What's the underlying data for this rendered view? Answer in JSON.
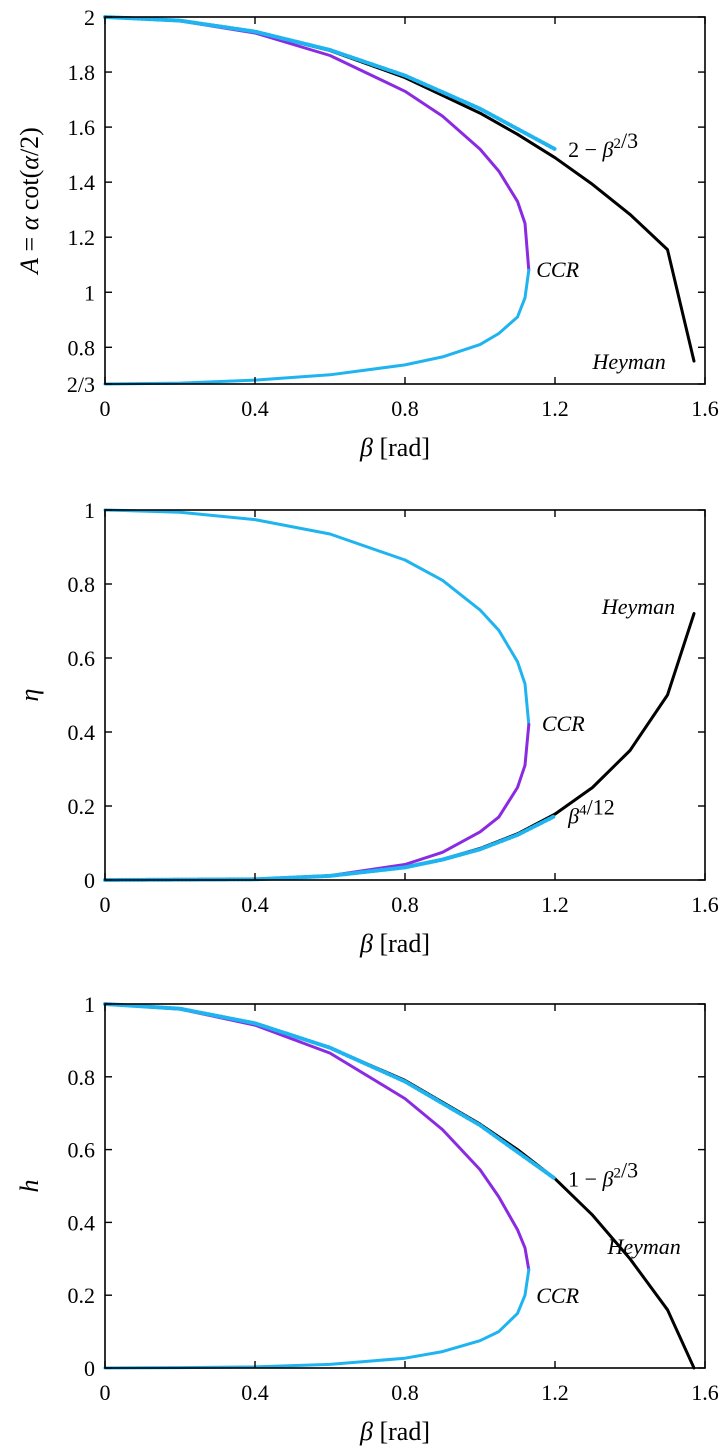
{
  "colors": {
    "heyman": "#000000",
    "ccr_upper": "#8a2be2",
    "ccr_lower": "#1fb4f0",
    "approx": "#1fb4f0"
  },
  "chart_data": [
    {
      "type": "line",
      "ylabel_parts": [
        "A",
        " = ",
        "α",
        " cot(",
        "α",
        "/2)"
      ],
      "xlabel_parts": [
        "β",
        " [rad]"
      ],
      "xlim": [
        0,
        1.6
      ],
      "ylim": [
        0.6667,
        2.0
      ],
      "xticks": [
        {
          "v": 0,
          "label": "0"
        },
        {
          "v": 0.4,
          "label": "0.4"
        },
        {
          "v": 0.8,
          "label": "0.8"
        },
        {
          "v": 1.2,
          "label": "1.2"
        },
        {
          "v": 1.6,
          "label": "1.6"
        }
      ],
      "yticks": [
        {
          "v": 0.6667,
          "label": "2/3"
        },
        {
          "v": 0.8,
          "label": "0.8"
        },
        {
          "v": 1.0,
          "label": "1"
        },
        {
          "v": 1.2,
          "label": "1.2"
        },
        {
          "v": 1.4,
          "label": "1.4"
        },
        {
          "v": 1.6,
          "label": "1.6"
        },
        {
          "v": 1.8,
          "label": "1.8"
        },
        {
          "v": 2.0,
          "label": "2"
        }
      ],
      "grid": false,
      "series": [
        {
          "name": "Heyman",
          "color_key": "heyman",
          "style": "solid",
          "x": [
            0,
            0.2,
            0.4,
            0.6,
            0.8,
            1.0,
            1.1,
            1.2,
            1.3,
            1.4,
            1.5,
            1.5708
          ],
          "y": [
            2.0,
            1.987,
            1.946,
            1.878,
            1.78,
            1.651,
            1.574,
            1.489,
            1.392,
            1.283,
            1.155,
            0.75
          ]
        },
        {
          "name": "",
          "color_key": "ccr_upper",
          "style": "solid",
          "x": [
            0,
            0.2,
            0.4,
            0.6,
            0.8,
            0.9,
            1.0,
            1.05,
            1.1,
            1.12,
            1.13
          ],
          "y": [
            2.0,
            1.986,
            1.942,
            1.86,
            1.73,
            1.64,
            1.52,
            1.44,
            1.33,
            1.25,
            1.08
          ]
        },
        {
          "name": "",
          "color_key": "ccr_lower",
          "style": "solid",
          "x": [
            1.13,
            1.12,
            1.1,
            1.05,
            1.0,
            0.9,
            0.8,
            0.6,
            0.4,
            0.2,
            0
          ],
          "y": [
            1.08,
            0.98,
            0.91,
            0.85,
            0.81,
            0.765,
            0.736,
            0.7,
            0.681,
            0.67,
            0.6667
          ]
        },
        {
          "name": "",
          "color_key": "approx",
          "style": "dotted",
          "x": [
            0,
            0.2,
            0.4,
            0.6,
            0.8,
            1.0,
            1.2
          ],
          "y": [
            2.0,
            1.987,
            1.947,
            1.88,
            1.787,
            1.667,
            1.52
          ]
        }
      ],
      "annotations": [
        {
          "parts": [
            "2 − ",
            "β",
            "2",
            "/3"
          ],
          "x": 1.235,
          "y": 1.52,
          "italic": false
        },
        {
          "text": "CCR",
          "x": 1.15,
          "y": 1.085,
          "italic": true
        },
        {
          "text": "Heyman",
          "x": 1.3,
          "y": 0.75,
          "italic": true
        }
      ]
    },
    {
      "type": "line",
      "ylabel": "η",
      "xlabel_parts": [
        "β",
        " [rad]"
      ],
      "xlim": [
        0,
        1.6
      ],
      "ylim": [
        0,
        1.0
      ],
      "xticks": [
        {
          "v": 0,
          "label": "0"
        },
        {
          "v": 0.4,
          "label": "0.4"
        },
        {
          "v": 0.8,
          "label": "0.8"
        },
        {
          "v": 1.2,
          "label": "1.2"
        },
        {
          "v": 1.6,
          "label": "1.6"
        }
      ],
      "yticks": [
        {
          "v": 0,
          "label": "0"
        },
        {
          "v": 0.2,
          "label": "0.2"
        },
        {
          "v": 0.4,
          "label": "0.4"
        },
        {
          "v": 0.6,
          "label": "0.6"
        },
        {
          "v": 0.8,
          "label": "0.8"
        },
        {
          "v": 1.0,
          "label": "1"
        }
      ],
      "grid": false,
      "series": [
        {
          "name": "Heyman",
          "color_key": "heyman",
          "style": "solid",
          "x": [
            0,
            0.4,
            0.6,
            0.8,
            0.9,
            1.0,
            1.1,
            1.2,
            1.3,
            1.4,
            1.5,
            1.5708
          ],
          "y": [
            0,
            0.002,
            0.011,
            0.035,
            0.056,
            0.085,
            0.125,
            0.178,
            0.25,
            0.35,
            0.5,
            0.72
          ]
        },
        {
          "name": "",
          "color_key": "ccr_lower",
          "style": "solid",
          "x": [
            0,
            0.2,
            0.4,
            0.6,
            0.8,
            0.9,
            1.0,
            1.05,
            1.1,
            1.12,
            1.13
          ],
          "y": [
            1.0,
            0.994,
            0.974,
            0.935,
            0.865,
            0.81,
            0.73,
            0.675,
            0.59,
            0.53,
            0.42
          ]
        },
        {
          "name": "",
          "color_key": "ccr_upper",
          "style": "solid",
          "x": [
            1.13,
            1.12,
            1.1,
            1.05,
            1.0,
            0.9,
            0.8,
            0.6,
            0.4,
            0.2,
            0
          ],
          "y": [
            0.42,
            0.31,
            0.25,
            0.17,
            0.13,
            0.075,
            0.042,
            0.012,
            0.002,
            0.0,
            0
          ]
        },
        {
          "name": "",
          "color_key": "approx",
          "style": "dotted",
          "x": [
            0,
            0.4,
            0.6,
            0.8,
            0.9,
            1.0,
            1.1,
            1.2
          ],
          "y": [
            0,
            0.002,
            0.011,
            0.034,
            0.055,
            0.083,
            0.122,
            0.173
          ]
        }
      ],
      "annotations": [
        {
          "text": "Heyman",
          "x": 1.325,
          "y": 0.74,
          "italic": true
        },
        {
          "text": "CCR",
          "x": 1.165,
          "y": 0.425,
          "italic": true
        },
        {
          "parts": [
            "β",
            "4",
            "/12"
          ],
          "x": 1.235,
          "y": 0.175,
          "italic": false
        }
      ]
    },
    {
      "type": "line",
      "ylabel": "h",
      "xlabel_parts": [
        "β",
        " [rad]"
      ],
      "xlim": [
        0,
        1.6
      ],
      "ylim": [
        0,
        1.0
      ],
      "xticks": [
        {
          "v": 0,
          "label": "0"
        },
        {
          "v": 0.4,
          "label": "0.4"
        },
        {
          "v": 0.8,
          "label": "0.8"
        },
        {
          "v": 1.2,
          "label": "1.2"
        },
        {
          "v": 1.6,
          "label": "1.6"
        }
      ],
      "yticks": [
        {
          "v": 0,
          "label": "0"
        },
        {
          "v": 0.2,
          "label": "0.2"
        },
        {
          "v": 0.4,
          "label": "0.4"
        },
        {
          "v": 0.6,
          "label": "0.6"
        },
        {
          "v": 0.8,
          "label": "0.8"
        },
        {
          "v": 1.0,
          "label": "1"
        }
      ],
      "grid": false,
      "series": [
        {
          "name": "Heyman",
          "color_key": "heyman",
          "style": "solid",
          "x": [
            0,
            0.2,
            0.4,
            0.6,
            0.8,
            1.0,
            1.1,
            1.2,
            1.3,
            1.4,
            1.5,
            1.5708
          ],
          "y": [
            1.0,
            0.987,
            0.947,
            0.88,
            0.79,
            0.67,
            0.6,
            0.52,
            0.42,
            0.3,
            0.16,
            0
          ]
        },
        {
          "name": "",
          "color_key": "ccr_upper",
          "style": "solid",
          "x": [
            0,
            0.2,
            0.4,
            0.6,
            0.8,
            0.9,
            1.0,
            1.05,
            1.1,
            1.12,
            1.13
          ],
          "y": [
            1.0,
            0.986,
            0.942,
            0.865,
            0.74,
            0.655,
            0.545,
            0.47,
            0.38,
            0.33,
            0.27
          ]
        },
        {
          "name": "",
          "color_key": "ccr_lower",
          "style": "solid",
          "x": [
            1.13,
            1.12,
            1.1,
            1.05,
            1.0,
            0.9,
            0.8,
            0.6,
            0.4,
            0.2,
            0
          ],
          "y": [
            0.27,
            0.2,
            0.15,
            0.1,
            0.075,
            0.045,
            0.027,
            0.01,
            0.003,
            0.001,
            0
          ]
        },
        {
          "name": "",
          "color_key": "approx",
          "style": "dotted",
          "x": [
            0,
            0.2,
            0.4,
            0.6,
            0.8,
            1.0,
            1.2
          ],
          "y": [
            1.0,
            0.987,
            0.947,
            0.88,
            0.787,
            0.667,
            0.52
          ]
        }
      ],
      "annotations": [
        {
          "parts": [
            "1 − ",
            "β",
            "2",
            "/3"
          ],
          "x": 1.235,
          "y": 0.52,
          "italic": false
        },
        {
          "text": "Heyman",
          "x": 1.34,
          "y": 0.335,
          "italic": true
        },
        {
          "text": "CCR",
          "x": 1.15,
          "y": 0.2,
          "italic": true
        }
      ]
    }
  ]
}
